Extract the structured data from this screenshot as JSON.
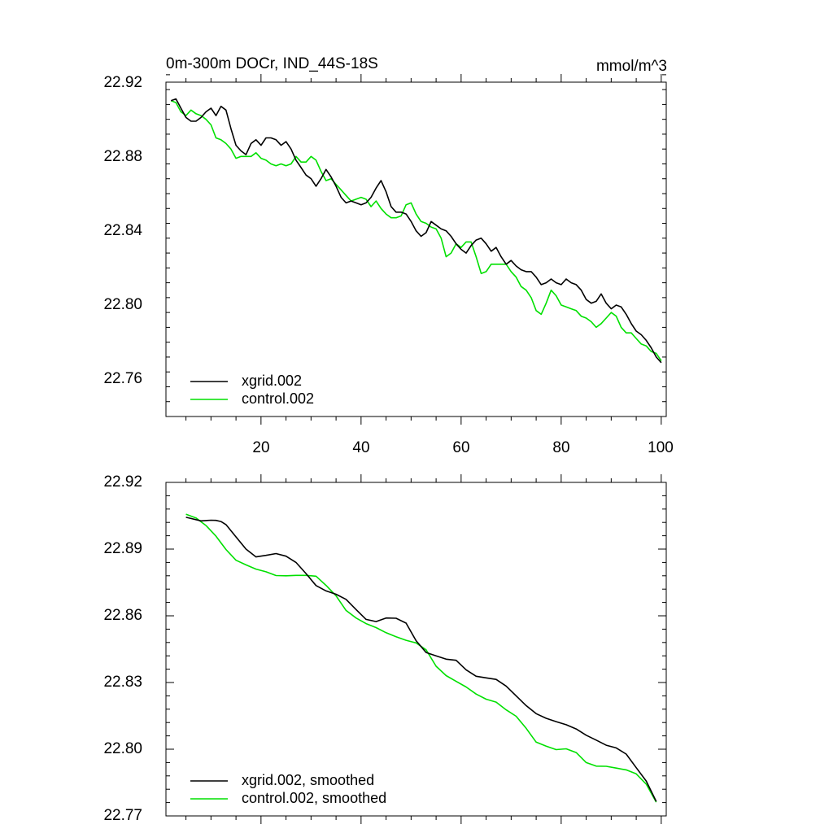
{
  "chart_data": [
    {
      "type": "line",
      "title": "0m-300m DOCr, IND_44S-18S",
      "units": "mmol/m^3",
      "xlabel": "",
      "ylabel": "",
      "xlim": [
        1,
        101
      ],
      "ylim": [
        22.74,
        22.92
      ],
      "xticks": [
        20,
        40,
        60,
        80,
        100
      ],
      "xtick_labels": [
        "20",
        "40",
        "60",
        "80",
        "100"
      ],
      "yticks": [
        22.76,
        22.8,
        22.84,
        22.88,
        22.92
      ],
      "ytick_labels": [
        "22.76",
        "22.80",
        "22.84",
        "22.88",
        "22.92"
      ],
      "legend_position": "bottom-left",
      "series": [
        {
          "name": "xgrid.002",
          "color": "#000000",
          "x": [
            2,
            3,
            4,
            5,
            6,
            7,
            8,
            9,
            10,
            11,
            12,
            13,
            14,
            15,
            16,
            17,
            18,
            19,
            20,
            21,
            22,
            23,
            24,
            25,
            26,
            27,
            28,
            29,
            30,
            31,
            32,
            33,
            34,
            35,
            36,
            37,
            38,
            39,
            40,
            41,
            42,
            43,
            44,
            45,
            46,
            47,
            48,
            49,
            50,
            51,
            52,
            53,
            54,
            55,
            56,
            57,
            58,
            59,
            60,
            61,
            62,
            63,
            64,
            65,
            66,
            67,
            68,
            69,
            70,
            71,
            72,
            73,
            74,
            75,
            76,
            77,
            78,
            79,
            80,
            81,
            82,
            83,
            84,
            85,
            86,
            87,
            88,
            89,
            90,
            91,
            92,
            93,
            94,
            95,
            96,
            97,
            98,
            99,
            100
          ],
          "values": [
            22.91,
            22.911,
            22.906,
            22.901,
            22.899,
            22.899,
            22.901,
            22.904,
            22.906,
            22.902,
            22.907,
            22.905,
            22.895,
            22.886,
            22.883,
            22.881,
            22.887,
            22.889,
            22.886,
            22.89,
            22.89,
            22.889,
            22.886,
            22.888,
            22.884,
            22.878,
            22.874,
            22.87,
            22.868,
            22.864,
            22.868,
            22.873,
            22.869,
            22.864,
            22.858,
            22.855,
            22.856,
            22.855,
            22.854,
            22.855,
            22.858,
            22.863,
            22.867,
            22.861,
            22.853,
            22.85,
            22.85,
            22.849,
            22.845,
            22.84,
            22.837,
            22.839,
            22.845,
            22.843,
            22.841,
            22.84,
            22.837,
            22.833,
            22.83,
            22.828,
            22.832,
            22.835,
            22.836,
            22.833,
            22.829,
            22.831,
            22.826,
            22.822,
            22.824,
            22.821,
            22.819,
            22.818,
            22.818,
            22.815,
            22.811,
            22.812,
            22.814,
            22.812,
            22.811,
            22.814,
            22.812,
            22.811,
            22.808,
            22.803,
            22.801,
            22.802,
            22.806,
            22.801,
            22.798,
            22.8,
            22.799,
            22.795,
            22.79,
            22.786,
            22.784,
            22.781,
            22.777,
            22.772,
            22.769
          ]
        },
        {
          "name": "control.002",
          "color": "#00e000",
          "x": [
            2,
            3,
            4,
            5,
            6,
            7,
            8,
            9,
            10,
            11,
            12,
            13,
            14,
            15,
            16,
            17,
            18,
            19,
            20,
            21,
            22,
            23,
            24,
            25,
            26,
            27,
            28,
            29,
            30,
            31,
            32,
            33,
            34,
            35,
            36,
            37,
            38,
            39,
            40,
            41,
            42,
            43,
            44,
            45,
            46,
            47,
            48,
            49,
            50,
            51,
            52,
            53,
            54,
            55,
            56,
            57,
            58,
            59,
            60,
            61,
            62,
            63,
            64,
            65,
            66,
            67,
            68,
            69,
            70,
            71,
            72,
            73,
            74,
            75,
            76,
            77,
            78,
            79,
            80,
            81,
            82,
            83,
            84,
            85,
            86,
            87,
            88,
            89,
            90,
            91,
            92,
            93,
            94,
            95,
            96,
            97,
            98,
            99,
            100
          ],
          "values": [
            22.91,
            22.909,
            22.904,
            22.902,
            22.905,
            22.903,
            22.902,
            22.9,
            22.897,
            22.89,
            22.889,
            22.887,
            22.884,
            22.879,
            22.88,
            22.88,
            22.88,
            22.882,
            22.879,
            22.878,
            22.876,
            22.875,
            22.876,
            22.875,
            22.876,
            22.88,
            22.877,
            22.877,
            22.88,
            22.878,
            22.872,
            22.867,
            22.868,
            22.865,
            22.862,
            22.859,
            22.856,
            22.857,
            22.858,
            22.857,
            22.853,
            22.856,
            22.852,
            22.849,
            22.847,
            22.847,
            22.848,
            22.854,
            22.855,
            22.849,
            22.845,
            22.844,
            22.842,
            22.841,
            22.836,
            22.826,
            22.828,
            22.833,
            22.831,
            22.834,
            22.834,
            22.826,
            22.817,
            22.818,
            22.822,
            22.822,
            22.822,
            22.822,
            22.818,
            22.815,
            22.81,
            22.808,
            22.804,
            22.797,
            22.795,
            22.801,
            22.808,
            22.805,
            22.8,
            22.799,
            22.798,
            22.797,
            22.794,
            22.793,
            22.791,
            22.788,
            22.79,
            22.793,
            22.796,
            22.794,
            22.788,
            22.785,
            22.785,
            22.782,
            22.779,
            22.778,
            22.775,
            22.774,
            22.77
          ]
        }
      ]
    },
    {
      "type": "line",
      "title": "",
      "units": "",
      "xlabel": "",
      "ylabel": "",
      "xlim": [
        1,
        101
      ],
      "ylim": [
        22.77,
        22.92
      ],
      "xticks": [
        20,
        40,
        60,
        80,
        100
      ],
      "xtick_labels": [],
      "yticks": [
        22.77,
        22.8,
        22.83,
        22.86,
        22.89,
        22.92
      ],
      "ytick_labels": [
        "22.77",
        "22.80",
        "22.83",
        "22.86",
        "22.89",
        "22.92"
      ],
      "legend_position": "bottom-left",
      "series": [
        {
          "name": "xgrid.002, smoothed",
          "color": "#000000",
          "x": [
            5,
            8,
            10,
            11,
            12,
            13,
            15,
            17,
            19,
            21,
            23,
            25,
            27,
            29,
            31,
            33,
            35,
            37,
            39,
            41,
            43,
            45,
            47,
            49,
            51,
            53,
            55,
            57,
            59,
            61,
            63,
            65,
            67,
            69,
            71,
            73,
            75,
            77,
            79,
            81,
            83,
            85,
            87,
            89,
            91,
            93,
            95,
            97,
            99
          ],
          "values": [
            22.9043,
            22.9027,
            22.903,
            22.9029,
            22.9024,
            22.901,
            22.8955,
            22.89,
            22.8865,
            22.8872,
            22.888,
            22.8868,
            22.884,
            22.879,
            22.8736,
            22.8712,
            22.8697,
            22.8674,
            22.8628,
            22.8584,
            22.8574,
            22.859,
            22.8589,
            22.8567,
            22.8488,
            22.8435,
            22.842,
            22.8405,
            22.84,
            22.8357,
            22.8328,
            22.8321,
            22.8314,
            22.8284,
            22.824,
            22.8196,
            22.816,
            22.8139,
            22.8124,
            22.811,
            22.8091,
            22.8063,
            22.8041,
            22.8018,
            22.8006,
            22.7978,
            22.7917,
            22.7857,
            22.7765
          ]
        },
        {
          "name": "control.002, smoothed",
          "color": "#00e000",
          "x": [
            5,
            7,
            9,
            11,
            13,
            15,
            17,
            19,
            21,
            23,
            25,
            27,
            29,
            31,
            33,
            35,
            37,
            39,
            41,
            43,
            45,
            47,
            49,
            51,
            53,
            55,
            57,
            59,
            61,
            63,
            65,
            67,
            69,
            71,
            73,
            75,
            77,
            79,
            81,
            83,
            85,
            87,
            89,
            91,
            93,
            95,
            97,
            99
          ],
          "values": [
            22.9057,
            22.904,
            22.9006,
            22.8958,
            22.8898,
            22.885,
            22.8829,
            22.881,
            22.8798,
            22.8781,
            22.878,
            22.8782,
            22.8782,
            22.8778,
            22.8737,
            22.869,
            22.8624,
            22.859,
            22.8565,
            22.8547,
            22.8524,
            22.8506,
            22.849,
            22.8478,
            22.8447,
            22.8373,
            22.8331,
            22.8305,
            22.828,
            22.8248,
            22.8225,
            22.8212,
            22.8177,
            22.8148,
            22.8094,
            22.8032,
            22.8014,
            22.7998,
            22.8002,
            22.7985,
            22.794,
            22.7924,
            22.7923,
            22.7915,
            22.7907,
            22.7889,
            22.7843,
            22.7762
          ]
        }
      ]
    }
  ]
}
